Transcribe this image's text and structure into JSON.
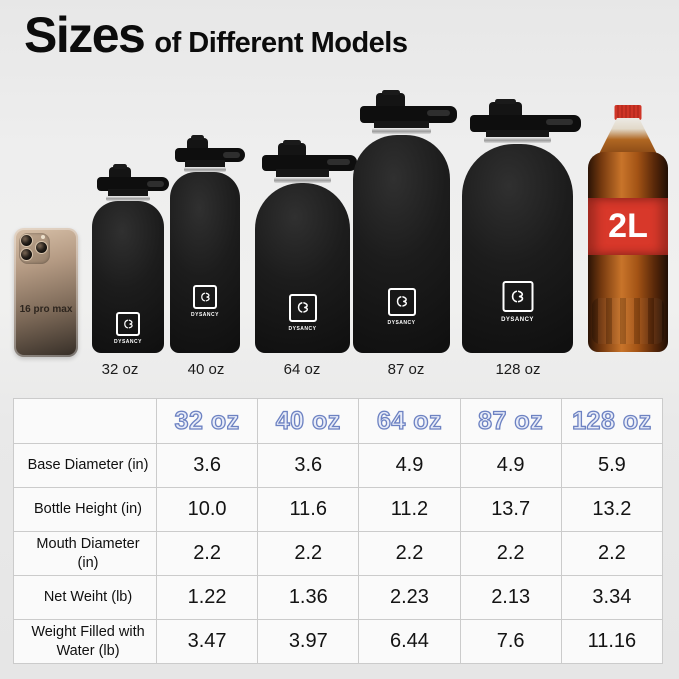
{
  "title": {
    "big": "Sizes",
    "rest": "of Different Models"
  },
  "products": {
    "phone_label": "16 pro max",
    "brand": "DYSANCY",
    "cola_label": "2L",
    "bottle_color": "#1c1c1c",
    "bottles": [
      {
        "label": "32 oz"
      },
      {
        "label": "40 oz"
      },
      {
        "label": "64 oz"
      },
      {
        "label": "87 oz"
      },
      {
        "label": "128 oz"
      }
    ]
  },
  "table": {
    "columns": [
      "32 oz",
      "40 oz",
      "64 oz",
      "87 oz",
      "128 oz"
    ],
    "rows": [
      {
        "label": "Base Diameter (in)",
        "values": [
          "3.6",
          "3.6",
          "4.9",
          "4.9",
          "5.9"
        ]
      },
      {
        "label": "Bottle Height (in)",
        "values": [
          "10.0",
          "11.6",
          "11.2",
          "13.7",
          "13.2"
        ]
      },
      {
        "label": "Mouth Diameter (in)",
        "values": [
          "2.2",
          "2.2",
          "2.2",
          "2.2",
          "2.2"
        ]
      },
      {
        "label": "Net Weiht (lb)",
        "values": [
          "1.22",
          "1.36",
          "2.23",
          "2.13",
          "3.34"
        ]
      },
      {
        "label": "Weight Filled with Water (lb)",
        "values": [
          "3.47",
          "3.97",
          "6.44",
          "7.6",
          "11.16"
        ]
      }
    ]
  },
  "colors": {
    "background": "#ebebeb",
    "header_text_fill": "#e8ecf8",
    "header_text_stroke": "#6d82c2",
    "cola_red": "#d8382a",
    "table_border": "#cbcbcb"
  }
}
